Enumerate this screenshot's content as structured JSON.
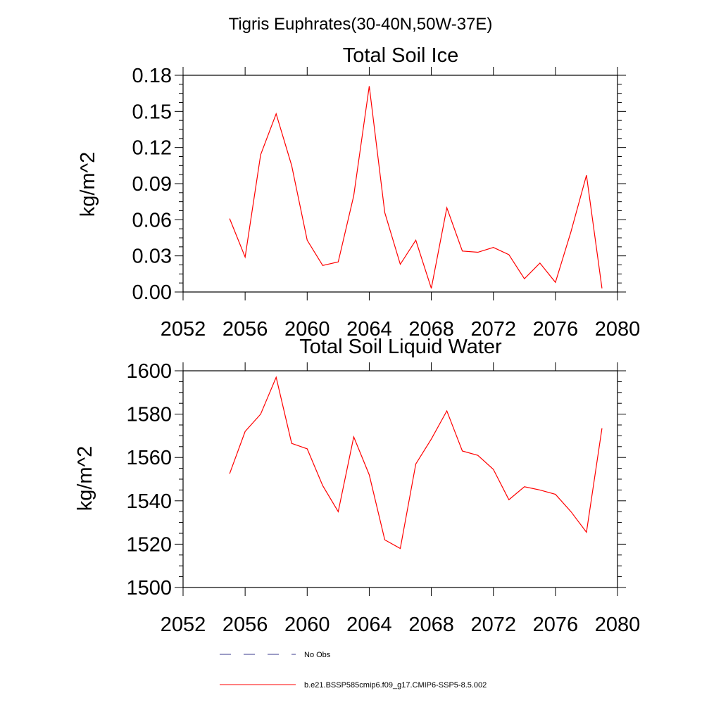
{
  "title": "Tigris Euphrates(30-40N,50W-37E)",
  "chart_data": [
    {
      "type": "line",
      "title": "Total Soil Ice",
      "ylabel": "kg/m^2",
      "xlabel": "",
      "xlim": [
        2052,
        2080
      ],
      "ylim": [
        0,
        0.18
      ],
      "xticks": [
        "2052",
        "2056",
        "2060",
        "2064",
        "2068",
        "2072",
        "2076",
        "2080"
      ],
      "yticks": [
        "0.00",
        "0.03",
        "0.06",
        "0.09",
        "0.12",
        "0.15",
        "0.18"
      ],
      "x": [
        2055,
        2056,
        2057,
        2058,
        2059,
        2060,
        2061,
        2062,
        2063,
        2064,
        2065,
        2066,
        2067,
        2068,
        2069,
        2070,
        2071,
        2072,
        2073,
        2074,
        2075,
        2076,
        2077,
        2078,
        2079
      ],
      "series": [
        {
          "name": "b.e21.BSSP585cmip6.f09_g17.CMIP6-SSP5-8.5.002",
          "color": "#ff0000",
          "values": [
            0.061,
            0.029,
            0.114,
            0.148,
            0.105,
            0.043,
            0.022,
            0.025,
            0.08,
            0.171,
            0.066,
            0.023,
            0.043,
            0.003,
            0.07,
            0.034,
            0.033,
            0.037,
            0.031,
            0.011,
            0.024,
            0.008,
            0.05,
            0.097,
            0.003
          ]
        }
      ]
    },
    {
      "type": "line",
      "title": "Total Soil Liquid Water",
      "ylabel": "kg/m^2",
      "xlabel": "",
      "xlim": [
        2052,
        2080
      ],
      "ylim": [
        1500,
        1600
      ],
      "xticks": [
        "2052",
        "2056",
        "2060",
        "2064",
        "2068",
        "2072",
        "2076",
        "2080"
      ],
      "yticks": [
        "1500",
        "1520",
        "1540",
        "1560",
        "1580",
        "1600"
      ],
      "x": [
        2055,
        2056,
        2057,
        2058,
        2059,
        2060,
        2061,
        2062,
        2063,
        2064,
        2065,
        2066,
        2067,
        2068,
        2069,
        2070,
        2071,
        2072,
        2073,
        2074,
        2075,
        2076,
        2077,
        2078,
        2079
      ],
      "series": [
        {
          "name": "b.e21.BSSP585cmip6.f09_g17.CMIP6-SSP5-8.5.002",
          "color": "#ff0000",
          "values": [
            1552.5,
            1572,
            1580,
            1597,
            1566.5,
            1564,
            1547,
            1535,
            1569.5,
            1552,
            1522,
            1518,
            1557,
            1568.5,
            1581.5,
            1563,
            1561,
            1554.5,
            1540.5,
            1546.5,
            1545,
            1543,
            1535,
            1525.5,
            1573.5
          ]
        }
      ]
    }
  ],
  "legend": [
    {
      "label": "No Obs",
      "color": "#3a3a8c",
      "dash": "dashed"
    },
    {
      "label": "b.e21.BSSP585cmip6.f09_g17.CMIP6-SSP5-8.5.002",
      "color": "#ff0000",
      "dash": "solid"
    }
  ]
}
